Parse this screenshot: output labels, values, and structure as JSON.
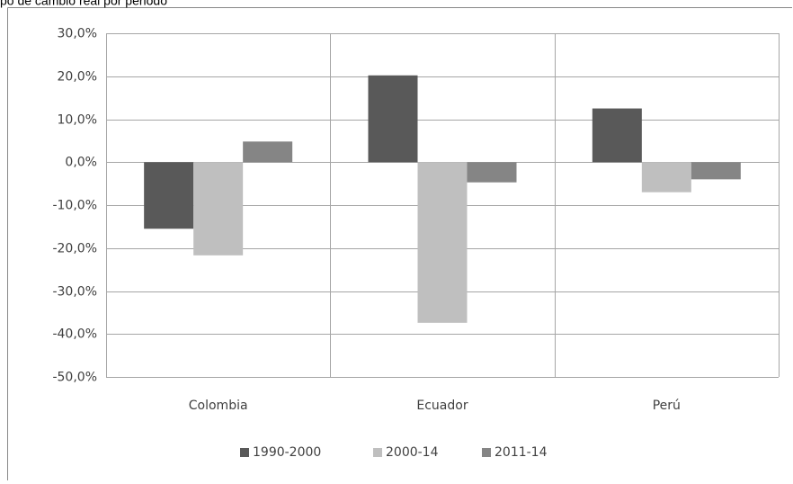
{
  "chart_data": {
    "type": "bar",
    "title": "po de cambio real por periodo",
    "categories": [
      "Colombia",
      "Ecuador",
      "Perú"
    ],
    "series": [
      {
        "name": "1990-2000",
        "color": "#595959",
        "values": [
          -15.5,
          20.2,
          12.5
        ]
      },
      {
        "name": "2000-14",
        "color": "#bfbfbf",
        "values": [
          -21.7,
          -37.4,
          -7.0
        ]
      },
      {
        "name": "2011-14",
        "color": "#858585",
        "values": [
          4.8,
          -4.7,
          -4.0
        ]
      }
    ],
    "ylim": [
      -50,
      30
    ],
    "yticks": [
      {
        "value": -50,
        "label": "-50,0%"
      },
      {
        "value": -40,
        "label": "-40,0%"
      },
      {
        "value": -30,
        "label": "-30,0%"
      },
      {
        "value": -20,
        "label": "-20,0%"
      },
      {
        "value": -10,
        "label": "-10,0%"
      },
      {
        "value": 0,
        "label": "0,0%"
      },
      {
        "value": 10,
        "label": "10,0%"
      },
      {
        "value": 20,
        "label": "20,0%"
      },
      {
        "value": 30,
        "label": "30,0%"
      }
    ],
    "grid": true,
    "legend": "bottom"
  }
}
